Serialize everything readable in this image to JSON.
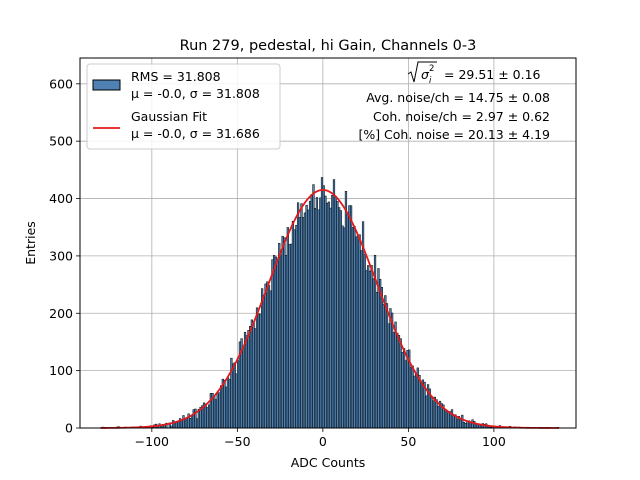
{
  "chart_data": {
    "type": "bar",
    "title": "Run 279, pedestal, hi Gain, Channels 0-3",
    "xlabel": "ADC Counts",
    "ylabel": "Entries",
    "xlim": [
      -142,
      148
    ],
    "ylim": [
      0,
      645
    ],
    "x_ticks": [
      -100,
      -50,
      0,
      50,
      100,
      150
    ],
    "y_ticks": [
      0,
      100,
      200,
      300,
      400,
      500,
      600
    ],
    "grid": true,
    "legend_placement": "top-left",
    "histogram": {
      "name": "RMS = 31.808",
      "label_line2": "μ = -0.0, σ = 31.808",
      "bin_width": 1,
      "amplitude": 418,
      "mean": 0.0,
      "sigma": 31.808,
      "x_range": [
        -130,
        138
      ],
      "color": "#4f82b3",
      "edge_color": "#000000"
    },
    "fit": {
      "name": "Gaussian Fit",
      "label_line2": "μ = -0.0, σ = 31.686",
      "amplitude": 415,
      "mean": 0.0,
      "sigma": 31.686,
      "x_range": [
        -130,
        138
      ],
      "color": "#e31a1c"
    },
    "annotations": {
      "sigma_i": "29.51 ± 0.16",
      "avg_noise": "Avg. noise/ch = 14.75 ± 0.08",
      "coh_noise": "Coh. noise/ch = 2.97 ± 0.62",
      "coh_percent": "[%] Coh. noise = 20.13 ± 4.19"
    }
  }
}
